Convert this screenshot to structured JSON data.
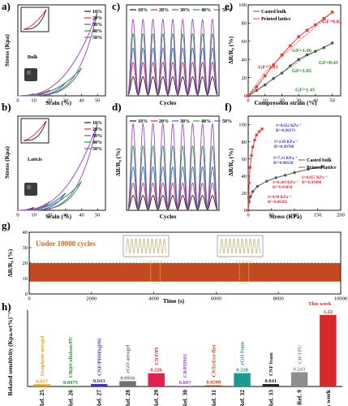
{
  "colors": {
    "s10": "#1a1a1a",
    "s20": "#e0214d",
    "s30": "#3366cc",
    "s40": "#2e9e3e",
    "s50": "#9b4dca",
    "casted": "#555555",
    "printed": "#e8403a",
    "g_fill": "#c14a20",
    "g_line": "#c8b98a",
    "green": "#2c8c2c",
    "blue": "#3a36b0",
    "red": "#d42a2a"
  },
  "legend_strains": [
    "10%",
    "20%",
    "30%",
    "40%",
    "50%"
  ],
  "chart_data": [
    {
      "id": "a",
      "type": "line",
      "panel_label": "a)",
      "inset_label": "Bulk",
      "xlabel": "Srain (%)",
      "ylabel": "Stress (Kpa)",
      "xlim": [
        0,
        55
      ],
      "xticks": [
        0,
        10,
        20,
        30,
        40,
        50
      ],
      "series_names": [
        "10%",
        "20%",
        "30%",
        "40%",
        "50%"
      ],
      "max_strain": [
        10,
        20,
        30,
        40,
        50
      ],
      "max_stress": [
        2,
        6,
        14,
        30,
        90
      ]
    },
    {
      "id": "b",
      "type": "line",
      "panel_label": "b)",
      "inset_label": "Lattcie",
      "xlabel": "Srain (%)",
      "ylabel": "Stress (Kpa)",
      "xlim": [
        0,
        55
      ],
      "xticks": [
        0,
        10,
        20,
        30,
        40,
        50
      ],
      "series_names": [
        "10%",
        "20%",
        "30%",
        "40%",
        "50%"
      ],
      "max_strain": [
        10,
        20,
        30,
        40,
        50
      ],
      "max_stress": [
        1,
        3,
        6,
        10,
        30
      ]
    },
    {
      "id": "c",
      "type": "line",
      "panel_label": "c)",
      "xlabel": "Cycles",
      "ylabel": "",
      "series_names": [
        "10%",
        "20%",
        "30%",
        "40%",
        "50%"
      ],
      "cycles": 9,
      "amplitudes": [
        8,
        14,
        20,
        26,
        32
      ],
      "ylim": [
        0,
        40
      ]
    },
    {
      "id": "d",
      "type": "line",
      "panel_label": "d)",
      "xlabel": "Cycles",
      "ylabel": "ΔR/R₀ (%)",
      "series_names": [
        "10%",
        "20%",
        "30%",
        "40%",
        "50%"
      ],
      "cycles": 9,
      "amplitudes": [
        12,
        22,
        35,
        52,
        70
      ],
      "ylim": [
        0,
        80
      ]
    },
    {
      "id": "e",
      "type": "line",
      "panel_label": "e)",
      "xlabel": "Compression strain (%)",
      "ylabel": "ΔR/R₀ (%)",
      "xlim": [
        0,
        55
      ],
      "ylim": [
        0,
        100
      ],
      "xticks": [
        0,
        10,
        20,
        30,
        40,
        50
      ],
      "yticks": [
        0,
        20,
        40,
        60,
        80,
        100
      ],
      "series": [
        {
          "name": "Casted bulk",
          "x": [
            0,
            5,
            10,
            15,
            20,
            25,
            30,
            35,
            40,
            45,
            50
          ],
          "y": [
            0,
            6,
            12,
            19,
            25,
            33,
            40,
            45,
            49,
            53,
            58
          ]
        },
        {
          "name": "Printed lattice",
          "x": [
            0,
            5,
            10,
            15,
            20,
            25,
            30,
            35,
            40,
            45,
            50
          ],
          "y": [
            0,
            10,
            22,
            34,
            45,
            55,
            65,
            72,
            78,
            85,
            92
          ]
        }
      ],
      "annotations": [
        {
          "text": "GF=2.63",
          "x": 6,
          "y": 30,
          "color": "red"
        },
        {
          "text": "GF=1.46",
          "x": 26,
          "y": 48,
          "color": "green"
        },
        {
          "text": "GF=0.82",
          "x": 44,
          "y": 80,
          "color": "red"
        },
        {
          "text": "GF=1.02",
          "x": 26,
          "y": 26,
          "color": "green"
        },
        {
          "text": "GF=0.41",
          "x": 42,
          "y": 35,
          "color": "green"
        },
        {
          "text": "GF=1.45",
          "x": 28,
          "y": 5,
          "color": "green"
        }
      ]
    },
    {
      "id": "f",
      "type": "line",
      "panel_label": "f)",
      "xlabel": "Stress (KPa)",
      "ylabel": "ΔR/R₀ (%)",
      "xlim": [
        0,
        200
      ],
      "ylim": [
        0,
        110
      ],
      "xticks": [
        0,
        50,
        100,
        150,
        200
      ],
      "yticks": [
        0,
        20,
        40,
        60,
        80,
        100
      ],
      "series": [
        {
          "name": "Casted bulk",
          "x": [
            0,
            2,
            5,
            10,
            20,
            40,
            60,
            80,
            100,
            130,
            160
          ],
          "y": [
            0,
            10,
            16,
            22,
            28,
            34,
            38,
            41,
            44,
            48,
            51
          ]
        },
        {
          "name": "Printed lattice",
          "x": [
            0,
            1,
            2,
            4,
            7,
            10,
            14,
            18,
            24,
            30
          ],
          "y": [
            0,
            15,
            32,
            50,
            64,
            74,
            82,
            88,
            92,
            95
          ]
        }
      ],
      "annotations": [
        {
          "text": "S=0.652 KPa⁻¹",
          "color": "blue"
        },
        {
          "text": "R²=0.96171",
          "color": "blue"
        },
        {
          "text": "S=2.69 KPa⁻¹",
          "color": "blue"
        },
        {
          "text": "R²=0.99788",
          "color": "blue"
        },
        {
          "text": "S=7.31 KPa⁻¹",
          "color": "blue"
        },
        {
          "text": "R²=0.98558",
          "color": "blue"
        },
        {
          "text": "S=0.057 KPa⁻¹",
          "color": "red"
        },
        {
          "text": "R²=0.93498",
          "color": "red"
        },
        {
          "text": "S=0.269 KPa⁻¹",
          "color": "red"
        },
        {
          "text": "R²=0.93034",
          "color": "red"
        },
        {
          "text": "S=0.99 KPa⁻¹",
          "color": "red"
        },
        {
          "text": "R²=0.86385",
          "color": "red"
        }
      ]
    },
    {
      "id": "g",
      "type": "area",
      "panel_label": "g)",
      "xlabel": "Time (s)",
      "ylabel": "ΔR/R₀ (%)",
      "xlim": [
        0,
        10000
      ],
      "ylim": [
        0,
        40
      ],
      "xticks": [
        0,
        2000,
        4000,
        6000,
        8000,
        10000
      ],
      "yticks": [
        0,
        10,
        20,
        30,
        40
      ],
      "band": [
        8,
        20
      ],
      "note": "Under 10000 cycles",
      "zoom_windows": [
        [
          3900,
          4200
        ],
        [
          6750,
          7050
        ]
      ],
      "inset_cycles": 10
    },
    {
      "id": "h",
      "type": "bar",
      "panel_label": "h)",
      "ylabel": "Related sensitivity (Kpa.wt%)⁻¹",
      "ylim": [
        0,
        1.3
      ],
      "categories": [
        "Ref. 25",
        "Ref. 26",
        "Ref. 27",
        "Ref. 28",
        "Ref. 29",
        "Ref. 30",
        "Ref. 31",
        "Ref. 32",
        "Ref. 33",
        "Ref. 9",
        "This work"
      ],
      "values": [
        0.037,
        0.0075,
        0.043,
        0.0916,
        0.226,
        0.007,
        0.0208,
        0.228,
        0.041,
        0.243,
        1.22
      ],
      "value_labels": [
        "0.037",
        "0.0075",
        "0.043",
        "0.0916",
        "0.226",
        "0.007",
        "0.0208",
        "0.228",
        "0.041",
        "0.243",
        "1.22"
      ],
      "bar_texts": [
        "Graphene aerogel",
        "CB@Cellulose/PU",
        "CNF/PDMS@Ni",
        "rGO aerogel",
        "CNT/PI",
        "CB/PDMS",
        "CNTs/Eco-flex",
        "rGO foam",
        "CNF foam",
        "CB/TPU",
        "This work"
      ],
      "bar_colors": [
        "#d8a516",
        "#2a8a3a",
        "#3a36b0",
        "#707070",
        "#e0214d",
        "#a04ad0",
        "#b14a18",
        "#1b9a8e",
        "#222222",
        "#8e8e8e",
        "#d42a2a"
      ]
    }
  ]
}
